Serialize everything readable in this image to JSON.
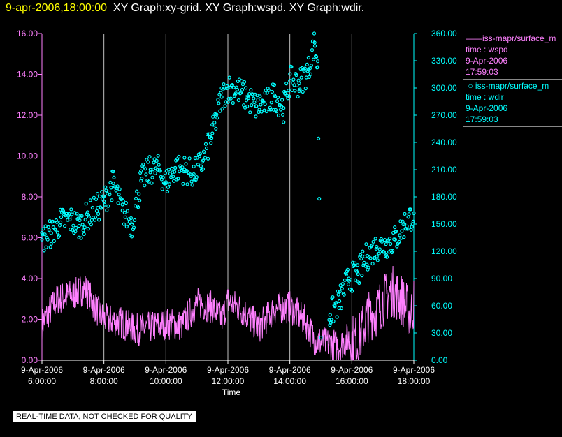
{
  "header": {
    "datetime": "9-apr-2006,18:00:00",
    "graphs": "XY Graph:xy-grid.  XY Graph:wspd.  XY Graph:wdir."
  },
  "legend": {
    "wspd": {
      "series": "iss-mapr/surface_m",
      "field": "time : wspd",
      "date": "9-Apr-2006",
      "time": "17:59:03"
    },
    "wdir": {
      "series": "iss-mapr/surface_m",
      "field": "time : wdir",
      "date": "9-Apr-2006",
      "time": "17:59:03"
    }
  },
  "footer": {
    "qc_notice": "REAL-TIME DATA, NOT CHECKED FOR QUALITY"
  },
  "colors": {
    "wspd": "#ff80ff",
    "wdir": "#00ffff",
    "grid": "#c0c0c0",
    "date": "#ffff00"
  },
  "chart_data": {
    "type": "line",
    "xlabel": "Time",
    "x_range_hours": [
      6.0,
      18.0
    ],
    "x_ticks": [
      {
        "hour": 6,
        "date": "9-Apr-2006",
        "time": "6:00:00"
      },
      {
        "hour": 8,
        "date": "9-Apr-2006",
        "time": "8:00:00"
      },
      {
        "hour": 10,
        "date": "9-Apr-2006",
        "time": "10:00:00"
      },
      {
        "hour": 12,
        "date": "9-Apr-2006",
        "time": "12:00:00"
      },
      {
        "hour": 14,
        "date": "9-Apr-2006",
        "time": "14:00:00"
      },
      {
        "hour": 16,
        "date": "9-Apr-2006",
        "time": "16:00:00"
      },
      {
        "hour": 18,
        "date": "9-Apr-2006",
        "time": "18:00:00"
      }
    ],
    "y_left": {
      "label": "wspd",
      "range": [
        0,
        16
      ],
      "ticks": [
        "0.00",
        "2.00",
        "4.00",
        "6.00",
        "8.00",
        "10.00",
        "12.00",
        "14.00",
        "16.00"
      ]
    },
    "y_right": {
      "label": "wdir",
      "range": [
        0,
        360
      ],
      "ticks": [
        "0.00",
        "30.00",
        "60.00",
        "90.00",
        "120.00",
        "150.00",
        "180.00",
        "210.00",
        "240.00",
        "270.00",
        "300.00",
        "330.00",
        "360.00"
      ]
    },
    "series": [
      {
        "name": "wspd",
        "axis": "left",
        "style": "line",
        "x": [
          6.0,
          6.5,
          7.0,
          7.4,
          7.8,
          8.0,
          8.5,
          9.0,
          9.5,
          10.0,
          10.5,
          11.0,
          11.5,
          11.8,
          12.0,
          12.5,
          13.0,
          13.5,
          14.0,
          14.5,
          14.8,
          15.0,
          15.3,
          15.6,
          15.9,
          16.2,
          16.5,
          16.8,
          17.0,
          17.3,
          17.6,
          17.9,
          18.0
        ],
        "values": [
          1.8,
          3.0,
          3.2,
          3.5,
          2.4,
          2.0,
          1.9,
          1.5,
          1.6,
          1.8,
          1.7,
          2.8,
          2.6,
          2.0,
          2.9,
          2.4,
          1.6,
          2.5,
          2.6,
          1.9,
          1.0,
          0.9,
          0.8,
          0.7,
          1.1,
          0.9,
          2.1,
          2.4,
          2.9,
          3.4,
          3.0,
          2.2,
          2.8
        ]
      },
      {
        "name": "wdir",
        "axis": "right",
        "style": "markers",
        "x": [
          6.0,
          6.3,
          6.6,
          6.9,
          7.2,
          7.5,
          7.8,
          8.0,
          8.3,
          8.6,
          8.9,
          9.2,
          9.5,
          9.8,
          10.0,
          10.3,
          10.6,
          10.9,
          11.2,
          11.5,
          11.8,
          12.0,
          12.3,
          12.6,
          12.9,
          13.2,
          13.5,
          13.8,
          14.0,
          14.3,
          14.6,
          14.8,
          14.9,
          15.0,
          15.3,
          15.6,
          15.9,
          16.2,
          16.5,
          16.8,
          17.1,
          17.4,
          17.7,
          18.0
        ],
        "values": [
          133,
          140,
          152,
          155,
          148,
          160,
          168,
          175,
          195,
          165,
          150,
          198,
          210,
          210,
          195,
          212,
          210,
          205,
          220,
          250,
          290,
          300,
          298,
          290,
          280,
          282,
          292,
          278,
          308,
          305,
          320,
          350,
          323,
          25,
          50,
          65,
          90,
          95,
          115,
          125,
          128,
          133,
          150,
          162
        ]
      }
    ]
  }
}
